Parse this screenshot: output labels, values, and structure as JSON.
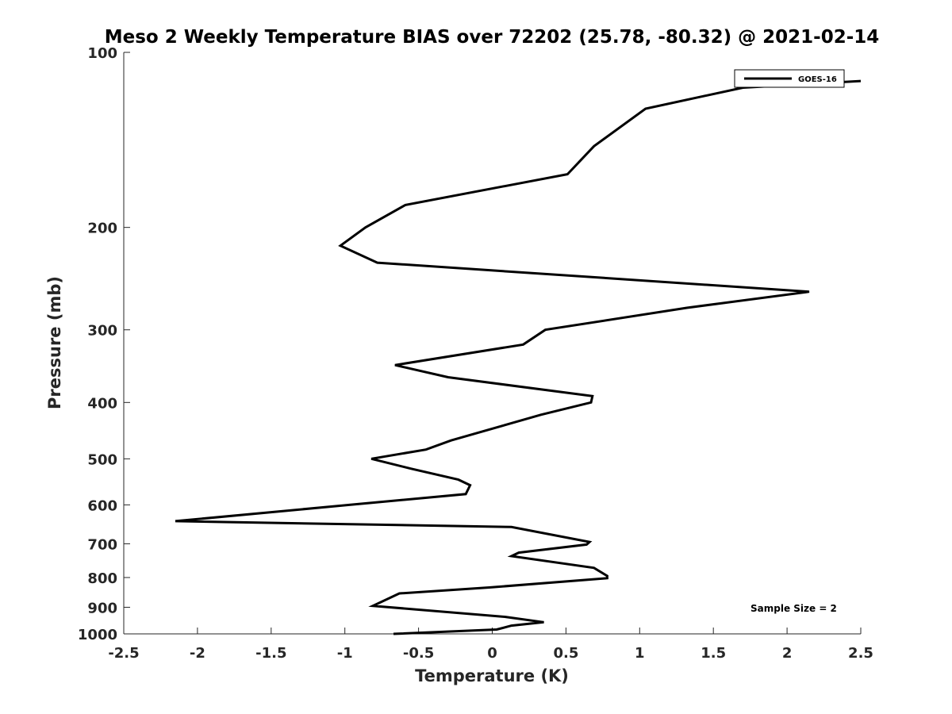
{
  "chart_data": {
    "type": "line",
    "title": "Meso 2 Weekly Temperature BIAS over 72202 (25.78, -80.32) @ 2021-02-14",
    "xlabel": "Temperature (K)",
    "ylabel": "Pressure (mb)",
    "xlim": [
      -2.5,
      2.5
    ],
    "ylim": [
      100,
      1000
    ],
    "y_scale": "log",
    "y_reversed": true,
    "x_ticks": [
      "-2.5",
      "-2",
      "-1.5",
      "-1",
      "-0.5",
      "0",
      "0.5",
      "1",
      "1.5",
      "2",
      "2.5"
    ],
    "x_tick_values": [
      -2.5,
      -2,
      -1.5,
      -1,
      -0.5,
      0,
      0.5,
      1,
      1.5,
      2,
      2.5
    ],
    "y_ticks": [
      "100",
      "200",
      "300",
      "400",
      "500",
      "600",
      "700",
      "800",
      "900",
      "1000"
    ],
    "y_tick_values": [
      100,
      200,
      300,
      400,
      500,
      600,
      700,
      800,
      900,
      1000
    ],
    "grid": false,
    "legend_position": "top-right",
    "annotation": "Sample Size = 2",
    "series": [
      {
        "name": "GOES-16",
        "color": "#000000",
        "points": [
          {
            "x": 2.5,
            "y": 112
          },
          {
            "x": 1.7,
            "y": 115
          },
          {
            "x": 1.04,
            "y": 125
          },
          {
            "x": 0.69,
            "y": 145
          },
          {
            "x": 0.51,
            "y": 162
          },
          {
            "x": -0.59,
            "y": 183
          },
          {
            "x": -0.86,
            "y": 200
          },
          {
            "x": -1.03,
            "y": 215
          },
          {
            "x": -0.78,
            "y": 230
          },
          {
            "x": 2.15,
            "y": 258
          },
          {
            "x": 1.32,
            "y": 275
          },
          {
            "x": 0.36,
            "y": 300
          },
          {
            "x": 0.21,
            "y": 318
          },
          {
            "x": -0.66,
            "y": 345
          },
          {
            "x": -0.3,
            "y": 362
          },
          {
            "x": 0.68,
            "y": 390
          },
          {
            "x": 0.67,
            "y": 400
          },
          {
            "x": 0.33,
            "y": 420
          },
          {
            "x": -0.28,
            "y": 465
          },
          {
            "x": -0.45,
            "y": 482
          },
          {
            "x": -0.82,
            "y": 500
          },
          {
            "x": -0.55,
            "y": 520
          },
          {
            "x": -0.23,
            "y": 543
          },
          {
            "x": -0.15,
            "y": 555
          },
          {
            "x": -0.18,
            "y": 575
          },
          {
            "x": -0.97,
            "y": 600
          },
          {
            "x": -2.15,
            "y": 640
          },
          {
            "x": 0.13,
            "y": 655
          },
          {
            "x": 0.66,
            "y": 695
          },
          {
            "x": 0.64,
            "y": 702
          },
          {
            "x": 0.18,
            "y": 725
          },
          {
            "x": 0.13,
            "y": 735
          },
          {
            "x": 0.69,
            "y": 770
          },
          {
            "x": 0.78,
            "y": 795
          },
          {
            "x": 0.78,
            "y": 802
          },
          {
            "x": -0.02,
            "y": 832
          },
          {
            "x": -0.63,
            "y": 852
          },
          {
            "x": -0.81,
            "y": 895
          },
          {
            "x": 0.09,
            "y": 935
          },
          {
            "x": 0.35,
            "y": 955
          },
          {
            "x": 0.13,
            "y": 968
          },
          {
            "x": 0.03,
            "y": 983
          },
          {
            "x": -0.67,
            "y": 1000
          }
        ]
      }
    ]
  }
}
